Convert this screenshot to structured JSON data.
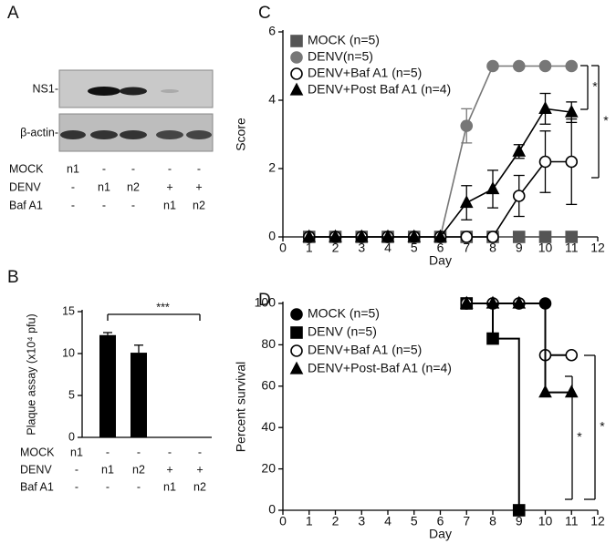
{
  "panel_a": {
    "label": "A",
    "blot_labels": [
      "NS1-",
      "β-actin-"
    ],
    "conditions": [
      {
        "label": "MOCK",
        "cells": [
          "n1",
          "-",
          "-",
          "-",
          "-"
        ]
      },
      {
        "label": "DENV",
        "cells": [
          "-",
          "n1",
          "n2",
          "+",
          "+"
        ]
      },
      {
        "label": "Baf A1",
        "cells": [
          "-",
          "-",
          "-",
          "n1",
          "n2"
        ]
      }
    ]
  },
  "chart_data": [
    {
      "type": "bar",
      "panel": "B",
      "ylabel": "Plaque assay (x10⁴ pfu)",
      "categories": [
        null,
        null,
        null,
        null,
        null
      ],
      "values": [
        0,
        12.2,
        10.1,
        0,
        0
      ],
      "errors": [
        null,
        0.3,
        0.9,
        null,
        null
      ],
      "color": "#000000",
      "ylim": [
        0,
        15
      ],
      "yticks": [
        0,
        5,
        10,
        15
      ],
      "annotations": [
        "***"
      ],
      "conditions": [
        {
          "label": "MOCK",
          "cells": [
            "n1",
            "-",
            "-",
            "-",
            "-"
          ]
        },
        {
          "label": "DENV",
          "cells": [
            "-",
            "n1",
            "n2",
            "+",
            "+"
          ]
        },
        {
          "label": "Baf A1",
          "cells": [
            "-",
            "-",
            "-",
            "n1",
            "n2"
          ]
        }
      ]
    },
    {
      "type": "line",
      "panel": "C",
      "xlabel": "Day",
      "ylabel": "Score",
      "xlim": [
        0,
        12
      ],
      "xticks": [
        0,
        1,
        2,
        3,
        4,
        5,
        6,
        7,
        8,
        9,
        10,
        11,
        12
      ],
      "ylim": [
        0,
        6
      ],
      "yticks": [
        0,
        2,
        4,
        6
      ],
      "annotations": [
        "*",
        "*"
      ],
      "series": [
        {
          "name": "MOCK (n=5)",
          "color": "#555555",
          "marker": "square",
          "filled": true,
          "x": [
            1,
            2,
            3,
            4,
            5,
            6,
            7,
            8,
            9,
            10,
            11
          ],
          "values": [
            0,
            0,
            0,
            0,
            0,
            0,
            0,
            0,
            0,
            0,
            0
          ],
          "errors": [
            null,
            null,
            null,
            null,
            null,
            null,
            null,
            null,
            null,
            null,
            null
          ]
        },
        {
          "name": "DENV(n=5)",
          "color": "#777777",
          "marker": "circle",
          "filled": true,
          "x": [
            1,
            2,
            3,
            4,
            5,
            6,
            7,
            8,
            9,
            10,
            11
          ],
          "values": [
            0,
            0,
            0,
            0,
            0,
            0,
            3.25,
            5,
            5,
            5,
            5
          ],
          "errors": [
            null,
            null,
            null,
            null,
            null,
            null,
            0.5,
            null,
            null,
            null,
            null
          ]
        },
        {
          "name": "DENV+Baf A1 (n=5)",
          "color": "#000000",
          "marker": "circle",
          "filled": false,
          "x": [
            1,
            2,
            3,
            4,
            5,
            6,
            7,
            8,
            9,
            10,
            11
          ],
          "values": [
            0,
            0,
            0,
            0,
            0,
            0,
            0,
            0,
            1.2,
            2.2,
            2.2
          ],
          "errors": [
            null,
            null,
            null,
            null,
            null,
            null,
            null,
            null,
            0.6,
            0.9,
            1.25
          ]
        },
        {
          "name": "DENV+Post Baf A1 (n=4)",
          "color": "#000000",
          "marker": "triangle",
          "filled": true,
          "x": [
            1,
            2,
            3,
            4,
            5,
            6,
            7,
            8,
            9,
            10,
            11
          ],
          "values": [
            0,
            0,
            0,
            0,
            0,
            0,
            1,
            1.4,
            2.5,
            3.75,
            3.65
          ],
          "errors": [
            null,
            null,
            null,
            null,
            null,
            null,
            0.5,
            0.55,
            0.2,
            0.45,
            0.3
          ]
        }
      ]
    },
    {
      "type": "line",
      "panel": "D",
      "step": true,
      "xlabel": "Day",
      "ylabel": "Percent survival",
      "xlim": [
        0,
        12
      ],
      "xticks": [
        0,
        1,
        2,
        3,
        4,
        5,
        6,
        7,
        8,
        9,
        10,
        11,
        12
      ],
      "ylim": [
        0,
        100
      ],
      "yticks": [
        0,
        20,
        40,
        60,
        80,
        100
      ],
      "annotations": [
        "*",
        "*"
      ],
      "series": [
        {
          "name": "MOCK (n=5)",
          "color": "#000000",
          "marker": "circle",
          "filled": true,
          "x": [
            7,
            8,
            9,
            10
          ],
          "values": [
            100,
            100,
            100,
            100
          ]
        },
        {
          "name": "DENV (n=5)",
          "color": "#000000",
          "marker": "square",
          "filled": true,
          "x": [
            7,
            8,
            9
          ],
          "values": [
            100,
            83,
            0
          ]
        },
        {
          "name": "DENV+Baf A1 (n=5)",
          "color": "#000000",
          "marker": "circle",
          "filled": false,
          "x": [
            7,
            8,
            9,
            10,
            11
          ],
          "values": [
            100,
            100,
            100,
            75,
            75
          ]
        },
        {
          "name": "DENV+Post-Baf A1 (n=4)",
          "color": "#000000",
          "marker": "triangle",
          "filled": true,
          "x": [
            7,
            8,
            9,
            10,
            11
          ],
          "values": [
            100,
            100,
            100,
            57,
            57
          ]
        }
      ]
    }
  ]
}
